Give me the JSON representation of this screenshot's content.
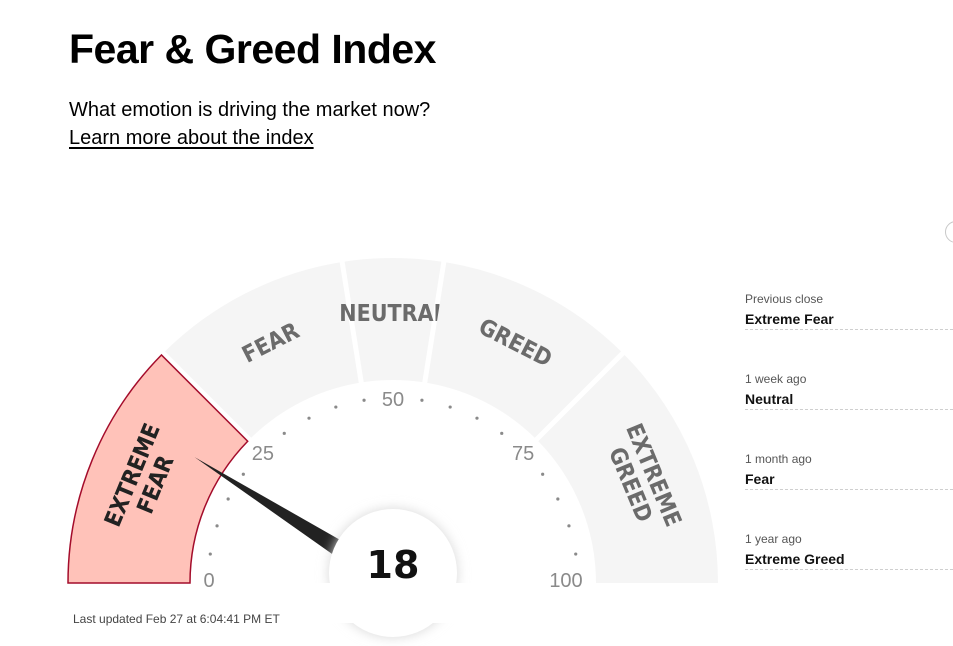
{
  "page": {
    "title": "Fear & Greed Index",
    "subtitle": "What emotion is driving the market now?",
    "learn_link": "Learn more about the index",
    "last_updated": "Last updated Feb 27 at 6:04:41 PM ET"
  },
  "gauge": {
    "value": 18,
    "value_label": "18",
    "active_segment": "extreme-fear",
    "segments": [
      {
        "id": "extreme-fear",
        "lines": [
          "EXTREME",
          "FEAR"
        ],
        "from": 0,
        "to": 25
      },
      {
        "id": "fear",
        "lines": [
          "FEAR"
        ],
        "from": 25,
        "to": 45
      },
      {
        "id": "neutral",
        "lines": [
          "NEUTRAL"
        ],
        "from": 45,
        "to": 55
      },
      {
        "id": "greed",
        "lines": [
          "GREED"
        ],
        "from": 55,
        "to": 75
      },
      {
        "id": "extreme-greed",
        "lines": [
          "EXTREME",
          "GREED"
        ],
        "from": 75,
        "to": 100
      }
    ],
    "scale_labels": [
      {
        "value": 0,
        "text": "0"
      },
      {
        "value": 25,
        "text": "25"
      },
      {
        "value": 50,
        "text": "50"
      },
      {
        "value": 75,
        "text": "75"
      },
      {
        "value": 100,
        "text": "100"
      }
    ],
    "colors": {
      "segment_fill": "#f5f5f5",
      "active_fill": "#ffc2b9",
      "active_stroke": "#a40c2b",
      "needle": "#222222",
      "tick_dot": "#8a8a8a"
    }
  },
  "history": [
    {
      "when": "Previous close",
      "value": "Extreme Fear"
    },
    {
      "when": "1 week ago",
      "value": "Neutral"
    },
    {
      "when": "1 month ago",
      "value": "Fear"
    },
    {
      "when": "1 year ago",
      "value": "Extreme Greed"
    }
  ]
}
